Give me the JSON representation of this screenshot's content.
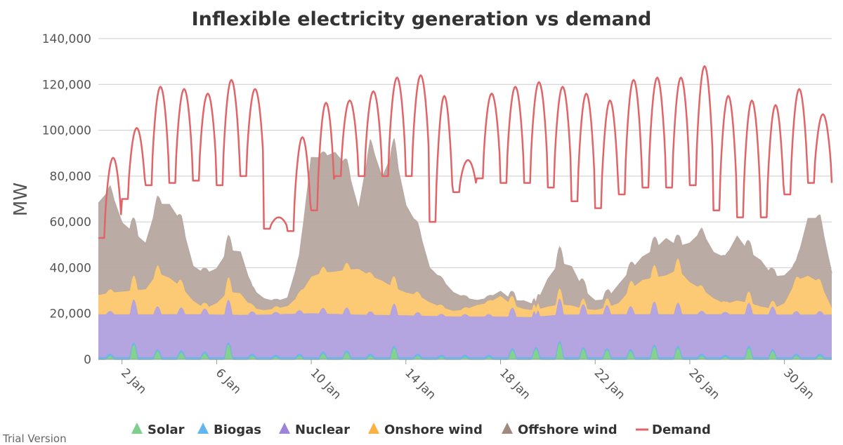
{
  "chart_data": {
    "type": "area",
    "title": "Inflexible electricity generation vs demand",
    "ylabel": "MW",
    "xlabel": "",
    "ylim": [
      0,
      140000
    ],
    "yticks": [
      0,
      20000,
      40000,
      60000,
      80000,
      100000,
      120000,
      140000
    ],
    "ytick_labels": [
      "0",
      "20,000",
      "40,000",
      "60,000",
      "80,000",
      "100,000",
      "120,000",
      "140,000"
    ],
    "xlim_days": [
      1.0,
      32.0
    ],
    "xticks": [
      {
        "day": 2,
        "label": "2 Jan"
      },
      {
        "day": 6,
        "label": "6 Jan"
      },
      {
        "day": 10,
        "label": "10 Jan"
      },
      {
        "day": 14,
        "label": "14 Jan"
      },
      {
        "day": 18,
        "label": "18 Jan"
      },
      {
        "day": 22,
        "label": "22 Jan"
      },
      {
        "day": 26,
        "label": "26 Jan"
      },
      {
        "day": 30,
        "label": "30 Jan"
      }
    ],
    "grid": true,
    "legend_position": "bottom",
    "series": [
      {
        "name": "Solar",
        "stacked": true,
        "color": "#7cd08a",
        "daily_peak_points": [
          [
            1.5,
            1500
          ],
          [
            2.5,
            6500
          ],
          [
            3.5,
            3500
          ],
          [
            4.5,
            3000
          ],
          [
            5.5,
            2500
          ],
          [
            6.5,
            6500
          ],
          [
            7.5,
            1500
          ],
          [
            8.5,
            1000
          ],
          [
            9.5,
            1500
          ],
          [
            10.5,
            2500
          ],
          [
            11.5,
            3000
          ],
          [
            12.5,
            1500
          ],
          [
            13.5,
            5000
          ],
          [
            14.5,
            1500
          ],
          [
            15.5,
            1000
          ],
          [
            16.5,
            1000
          ],
          [
            17.5,
            1000
          ],
          [
            18.5,
            4000
          ],
          [
            19.5,
            4500
          ],
          [
            20.5,
            7000
          ],
          [
            21.5,
            4500
          ],
          [
            22.5,
            4000
          ],
          [
            23.5,
            3500
          ],
          [
            24.5,
            5500
          ],
          [
            25.5,
            5000
          ],
          [
            26.5,
            1500
          ],
          [
            27.5,
            1000
          ],
          [
            28.5,
            5000
          ],
          [
            29.5,
            3500
          ],
          [
            30.5,
            1500
          ],
          [
            31.5,
            1500
          ]
        ]
      },
      {
        "name": "Biogas",
        "stacked": true,
        "color": "#62b6ee",
        "points": [
          [
            1,
            900
          ],
          [
            32,
            900
          ]
        ]
      },
      {
        "name": "Nuclear",
        "stacked": true,
        "color": "#b0a0de",
        "points": [
          [
            1,
            18700
          ],
          [
            3,
            18700
          ],
          [
            5,
            18800
          ],
          [
            7,
            18500
          ],
          [
            8,
            18600
          ],
          [
            10,
            19200
          ],
          [
            12,
            18600
          ],
          [
            14,
            18300
          ],
          [
            16,
            17800
          ],
          [
            18,
            17800
          ],
          [
            19.4,
            17500
          ],
          [
            19.5,
            14000
          ],
          [
            19.6,
            17800
          ],
          [
            20.5,
            18600
          ],
          [
            22,
            18700
          ],
          [
            24,
            18800
          ],
          [
            26,
            18800
          ],
          [
            28,
            18800
          ],
          [
            30,
            18600
          ],
          [
            32,
            18600
          ]
        ]
      },
      {
        "name": "Onshore wind",
        "stacked": true,
        "color": "#fcc76e",
        "points": [
          [
            1,
            8500
          ],
          [
            1.5,
            9500
          ],
          [
            2,
            10000
          ],
          [
            2.5,
            10500
          ],
          [
            3,
            11000
          ],
          [
            3.5,
            18000
          ],
          [
            4,
            16000
          ],
          [
            4.5,
            12000
          ],
          [
            5,
            6000
          ],
          [
            5.5,
            2500
          ],
          [
            6,
            5000
          ],
          [
            6.5,
            10000
          ],
          [
            7,
            9500
          ],
          [
            7.5,
            3000
          ],
          [
            8,
            2000
          ],
          [
            8.5,
            2500
          ],
          [
            9,
            3500
          ],
          [
            9.5,
            8000
          ],
          [
            10,
            16000
          ],
          [
            10.5,
            18000
          ],
          [
            11,
            18500
          ],
          [
            11.5,
            19500
          ],
          [
            12,
            20000
          ],
          [
            12.5,
            17000
          ],
          [
            13,
            15000
          ],
          [
            13.5,
            12000
          ],
          [
            14,
            10000
          ],
          [
            14.5,
            9000
          ],
          [
            15,
            6000
          ],
          [
            15.5,
            4000
          ],
          [
            16,
            2500
          ],
          [
            16.5,
            3000
          ],
          [
            17,
            5000
          ],
          [
            17.5,
            6000
          ],
          [
            18,
            9000
          ],
          [
            18.5,
            5000
          ],
          [
            19,
            3500
          ],
          [
            19.5,
            3000
          ],
          [
            20,
            4000
          ],
          [
            20.5,
            4500
          ],
          [
            21,
            4000
          ],
          [
            21.5,
            2500
          ],
          [
            22,
            2000
          ],
          [
            22.5,
            3000
          ],
          [
            23,
            5000
          ],
          [
            23.5,
            11000
          ],
          [
            24,
            15000
          ],
          [
            24.5,
            16000
          ],
          [
            25,
            17000
          ],
          [
            25.5,
            19500
          ],
          [
            26,
            14000
          ],
          [
            26.5,
            11000
          ],
          [
            27,
            7000
          ],
          [
            27.5,
            4500
          ],
          [
            28,
            6000
          ],
          [
            28.5,
            5000
          ],
          [
            29,
            3500
          ],
          [
            29.5,
            2500
          ],
          [
            30,
            5000
          ],
          [
            30.5,
            15000
          ],
          [
            31,
            17000
          ],
          [
            31.5,
            14000
          ],
          [
            32,
            3000
          ]
        ]
      },
      {
        "name": "Offshore wind",
        "stacked": true,
        "color": "#b6a7a0",
        "points": [
          [
            1,
            40000
          ],
          [
            1.5,
            45000
          ],
          [
            2,
            30000
          ],
          [
            2.5,
            25000
          ],
          [
            3,
            20000
          ],
          [
            3.5,
            30000
          ],
          [
            4,
            32000
          ],
          [
            4.5,
            28000
          ],
          [
            5,
            15000
          ],
          [
            5.5,
            15000
          ],
          [
            6,
            15000
          ],
          [
            6.5,
            18000
          ],
          [
            7,
            18000
          ],
          [
            7.5,
            8000
          ],
          [
            8,
            5000
          ],
          [
            8.5,
            3000
          ],
          [
            9,
            3500
          ],
          [
            9.5,
            16000
          ],
          [
            10,
            52000
          ],
          [
            10.5,
            50000
          ],
          [
            11,
            52000
          ],
          [
            11.5,
            45000
          ],
          [
            12,
            26000
          ],
          [
            12.5,
            58000
          ],
          [
            13,
            45000
          ],
          [
            13.5,
            60000
          ],
          [
            14,
            38000
          ],
          [
            14.5,
            30000
          ],
          [
            15,
            15000
          ],
          [
            15.5,
            12000
          ],
          [
            16,
            8000
          ],
          [
            16.5,
            5000
          ],
          [
            17,
            2000
          ],
          [
            17.5,
            2000
          ],
          [
            18,
            2000
          ],
          [
            18.5,
            2000
          ],
          [
            19,
            3500
          ],
          [
            19.5,
            2000
          ],
          [
            20,
            12000
          ],
          [
            20.5,
            18000
          ],
          [
            21,
            17000
          ],
          [
            21.5,
            8000
          ],
          [
            22,
            4000
          ],
          [
            22.5,
            3500
          ],
          [
            23,
            8000
          ],
          [
            23.5,
            8000
          ],
          [
            24,
            10000
          ],
          [
            24.5,
            12000
          ],
          [
            25,
            16000
          ],
          [
            25.5,
            10000
          ],
          [
            26,
            17000
          ],
          [
            26.5,
            25000
          ],
          [
            27,
            20000
          ],
          [
            27.5,
            20000
          ],
          [
            28,
            28000
          ],
          [
            28.5,
            22000
          ],
          [
            29,
            20000
          ],
          [
            29.5,
            14000
          ],
          [
            30,
            12000
          ],
          [
            30.5,
            7000
          ],
          [
            31,
            25000
          ],
          [
            31.5,
            28000
          ],
          [
            32,
            15000
          ]
        ]
      },
      {
        "name": "Demand",
        "stacked": false,
        "color": "#e06468",
        "daily_peaks": [
          88,
          101,
          119,
          118,
          116,
          122,
          118,
          62,
          97,
          112,
          113,
          117,
          123,
          124,
          115,
          87,
          116,
          119,
          121,
          119,
          116,
          113,
          122,
          123,
          123,
          128,
          115,
          113,
          111,
          118,
          107
        ],
        "daily_troughs": [
          53,
          70,
          76,
          77,
          78,
          76,
          80,
          57,
          56,
          65,
          80,
          80,
          80,
          80,
          60,
          73,
          79,
          77,
          77,
          75,
          69,
          66,
          72,
          75,
          75,
          76,
          65,
          62,
          62,
          72,
          77
        ]
      }
    ]
  },
  "legend": {
    "items": [
      {
        "label": "Solar",
        "color": "#7cd08a",
        "icon": "triangle-icon"
      },
      {
        "label": "Biogas",
        "color": "#62b6ee",
        "icon": "triangle-icon"
      },
      {
        "label": "Nuclear",
        "color": "#9d84d8",
        "icon": "triangle-icon"
      },
      {
        "label": "Onshore wind",
        "color": "#fbb143",
        "icon": "triangle-icon"
      },
      {
        "label": "Offshore wind",
        "color": "#a08a80",
        "icon": "triangle-icon"
      },
      {
        "label": "Demand",
        "color": "#e06468",
        "icon": "line-icon"
      }
    ]
  },
  "watermark": "Trial Version"
}
